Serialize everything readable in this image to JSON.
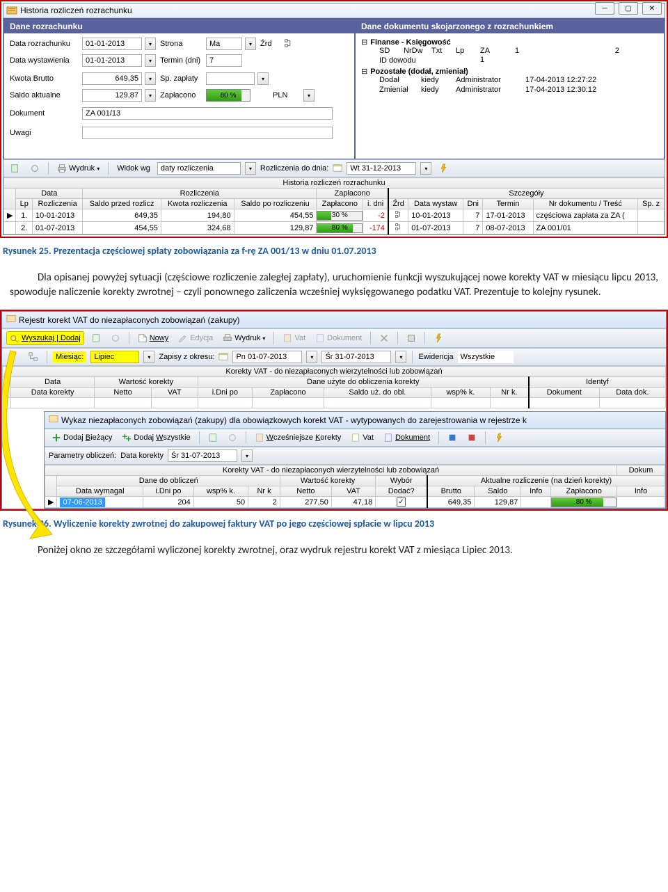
{
  "figure1": {
    "window_title": "Historia rozliczeń rozrachunku",
    "panel_left_title": "Dane rozrachunku",
    "panel_right_title": "Dane dokumentu skojarzonego z rozrachunkiem",
    "left": {
      "l_data_rozrachunku": "Data rozrachunku",
      "v_data_rozrachunku": "01-01-2013",
      "l_strona": "Strona",
      "v_strona": "Ma",
      "l_zrd": "Źrd",
      "l_data_wyst": "Data wystawienia",
      "v_data_wyst": "01-01-2013",
      "l_termin": "Termin (dni)",
      "v_termin": "7",
      "l_kwota_brutto": "Kwota Brutto",
      "v_kwota_brutto": "649,35",
      "l_sp_zaplaty": "Sp. zapłaty",
      "l_saldo": "Saldo aktualne",
      "v_saldo": "129,87",
      "l_zaplacono": "Zapłacono",
      "v_zaplacono_pct": "80 %",
      "l_pln": "PLN",
      "l_dokument": "Dokument",
      "v_dokument": "ZA 001/13",
      "l_uwagi": "Uwagi"
    },
    "right": {
      "group1": "Finanse - Księgowość",
      "sd": "SD",
      "nrdw": "NrDw",
      "txt": "Txt",
      "lp": "Lp",
      "za": "ZA",
      "v_za_a": "1",
      "v_za_b": "2",
      "id_dowodu": "ID dowodu",
      "v_id_dowodu": "1",
      "group2": "Pozostałe (dodał, zmieniał)",
      "dodal": "Dodał",
      "kiedy": "kiedy",
      "admin": "Administrator",
      "kiedy1": "17-04-2013 12:27:22",
      "zmienial": "Zmieniał",
      "kiedy2": "17-04-2013 12:30:12"
    },
    "toolbar": {
      "wydruk": "Wydruk",
      "widok_wg": "Widok wg",
      "daty_rozliczenia": "daty rozliczenia",
      "rozliczenia_do_dnia": "Rozliczenia do dnia:",
      "date": "Wt 31-12-2013"
    },
    "grid": {
      "title": "Historia rozliczeń rozrachunku",
      "group_data": "Data",
      "group_rozliczenia": "Rozliczenia",
      "group_zaplacono": "Zapłacono",
      "group_szczegoly": "Szczegóły",
      "col_lp": "Lp",
      "col_rozliczenia": "Rozliczenia",
      "col_saldo_przed": "Saldo przed rozlicz",
      "col_kwota": "Kwota rozliczenia",
      "col_saldo_po": "Saldo po rozliczeniu",
      "col_zaplacono": "Zapłacono",
      "col_idni": "i. dni",
      "col_zrd": "Źrd",
      "col_data_wystaw": "Data wystaw",
      "col_dni": "Dni",
      "col_termin": "Termin",
      "col_nr_dok": "Nr dokumentu / Treść",
      "col_sp": "Sp. z",
      "rows": [
        {
          "lp": "1.",
          "rozlicz": "10-01-2013",
          "saldo_przed": "649,35",
          "kwota": "194,80",
          "saldo_po": "454,55",
          "zapl_pct": "30 %",
          "idni": "-2",
          "zrd": "",
          "data_wystaw": "10-01-2013",
          "dni": "7",
          "termin": "17-01-2013",
          "nrdok": "częściowa zapłata za ZA (",
          "sp": ""
        },
        {
          "lp": "2.",
          "rozlicz": "01-07-2013",
          "saldo_przed": "454,55",
          "kwota": "324,68",
          "saldo_po": "129,87",
          "zapl_pct": "80 %",
          "idni": "-174",
          "zrd": "",
          "data_wystaw": "01-07-2013",
          "dni": "7",
          "termin": "08-07-2013",
          "nrdok": "ZA 001/01",
          "sp": ""
        }
      ]
    },
    "caption": "Rysunek 25. Prezentacja częściowej spłaty zobowiązania za f-rę ZA 001/13 w dniu 01.07.2013"
  },
  "paragraph": "Dla opisanej powyżej sytuacji (częściowe rozliczenie zaległej zapłaty), uruchomienie funkcji wyszukującej nowe korekty VAT w miesiącu lipcu 2013, spowoduje naliczenie korekty zwrotnej – czyli ponownego zaliczenia wcześniej wyksięgowanego podatku VAT. Prezentuje to kolejny rysunek.",
  "figure2": {
    "window_title": "Rejestr korekt VAT do niezapłaconych zobowiązań (zakupy)",
    "tb1": {
      "wyszukaj": "Wyszukaj | Dodaj",
      "nowy": "Nowy",
      "edycja": "Edycja",
      "wydruk": "Wydruk",
      "vat": "Vat",
      "dokument": "Dokument"
    },
    "tb2": {
      "miesiac": "Miesiąc:",
      "lipiec": "Lipiec",
      "zapisy": "Zapisy z okresu:",
      "date_from": "Pn 01-07-2013",
      "date_to": "Śr 31-07-2013",
      "ewidencja": "Ewidencja",
      "wszystkie": "Wszystkie"
    },
    "grid_top": {
      "title": "Korekty VAT - do niezapłaconych wierzytelności lub zobowiązań",
      "g_data": "Data",
      "g_wartosc": "Wartość korekty",
      "g_dane": "Dane użyte do obliczenia korekty",
      "g_ident": "Identyf",
      "c_data_korekty": "Data korekty",
      "c_netto": "Netto",
      "c_vat": "VAT",
      "c_idni": "i.Dni po",
      "c_zaplacono": "Zapłacono",
      "c_saldo": "Saldo uż. do obl.",
      "c_wsp": "wsp% k.",
      "c_nrk": "Nr k.",
      "c_dokument": "Dokument",
      "c_data_dok": "Data dok."
    },
    "subwindow_title": "Wykaz niezapłaconych zobowiązań (zakupy) dla obowiązkowych korekt VAT - wytypowanych do zarejestrowania w rejestrze k",
    "sub_tb": {
      "dodaj_biezacy": "Dodaj Bieżący",
      "dodaj_wszystkie": "Dodaj Wszystkie",
      "wczesniejsze": "Wcześniejsze Korekty",
      "vat": "Vat",
      "dokument": "Dokument"
    },
    "sub_tb2": {
      "parametry": "Parametry obliczeń:",
      "data_korekty": "Data korekty",
      "date": "Śr 31-07-2013"
    },
    "sub_grid": {
      "title": "Korekty VAT - do niezapłaconych wierzytelności lub zobowiązań",
      "dokum": "Dokum",
      "g_dane": "Dane do obliczeń",
      "g_wartosc": "Wartość korekty",
      "g_wybor": "Wybór",
      "g_aktualne": "Aktualne rozliczenie (na dzień korekty)",
      "c_data_wymag": "Data wymagal",
      "c_idni": "i.Dni po",
      "c_wsp": "wsp% k.",
      "c_nrk": "Nr k",
      "c_netto": "Netto",
      "c_vat": "VAT",
      "c_dodac": "Dodać?",
      "c_brutto": "Brutto",
      "c_saldo": "Saldo",
      "c_info": "Info",
      "c_zaplacono": "Zapłacono",
      "c_info2": "Info",
      "row": {
        "data_wymag": "07-06-2013",
        "idni": "204",
        "wsp": "50",
        "nrk": "2",
        "netto": "277,50",
        "vat": "47,18",
        "dodac": "✓",
        "brutto": "649,35",
        "saldo": "129,87",
        "info": "",
        "zapl_pct": "80 %",
        "info2": ""
      }
    },
    "caption": "Rysunek 26. Wyliczenie korekty zwrotnej do zakupowej faktury VAT po jego częściowej spłacie w lipcu 2013"
  },
  "paragraph2": "Poniżej okno ze szczegółami wyliczonej korekty zwrotnej, oraz wydruk rejestru korekt VAT z miesiąca Lipiec 2013."
}
